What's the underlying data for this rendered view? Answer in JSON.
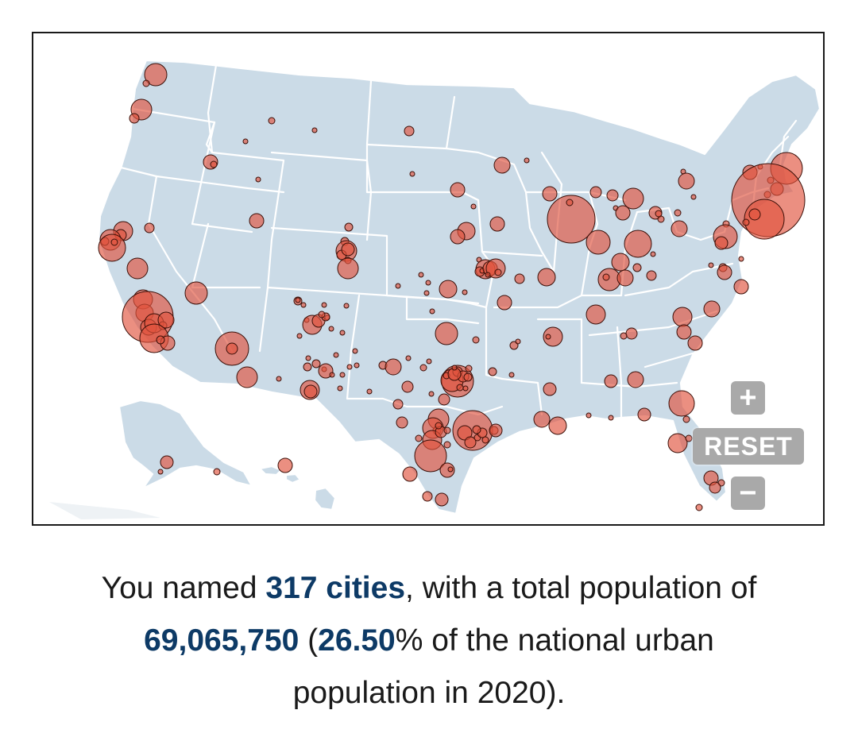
{
  "map": {
    "controls": {
      "zoom_in_label": "+",
      "reset_label": "RESET",
      "zoom_out_label": "−"
    },
    "colors": {
      "land": "#cbdbe7",
      "borders": "#ffffff",
      "bubble_fill": "#e0533e",
      "bubble_stroke": "#3a0f08",
      "control_bg": "#a9a9a9",
      "highlight_text": "#0d3a66"
    }
  },
  "summary": {
    "prefix": "You named ",
    "city_count": "317 cities",
    "middle": ", with a total population of",
    "population": "69,065,750",
    "paren_open": " (",
    "percent": "26.50",
    "suffix_line2": "% of the national urban",
    "suffix_line3": "population in 2020)."
  }
}
